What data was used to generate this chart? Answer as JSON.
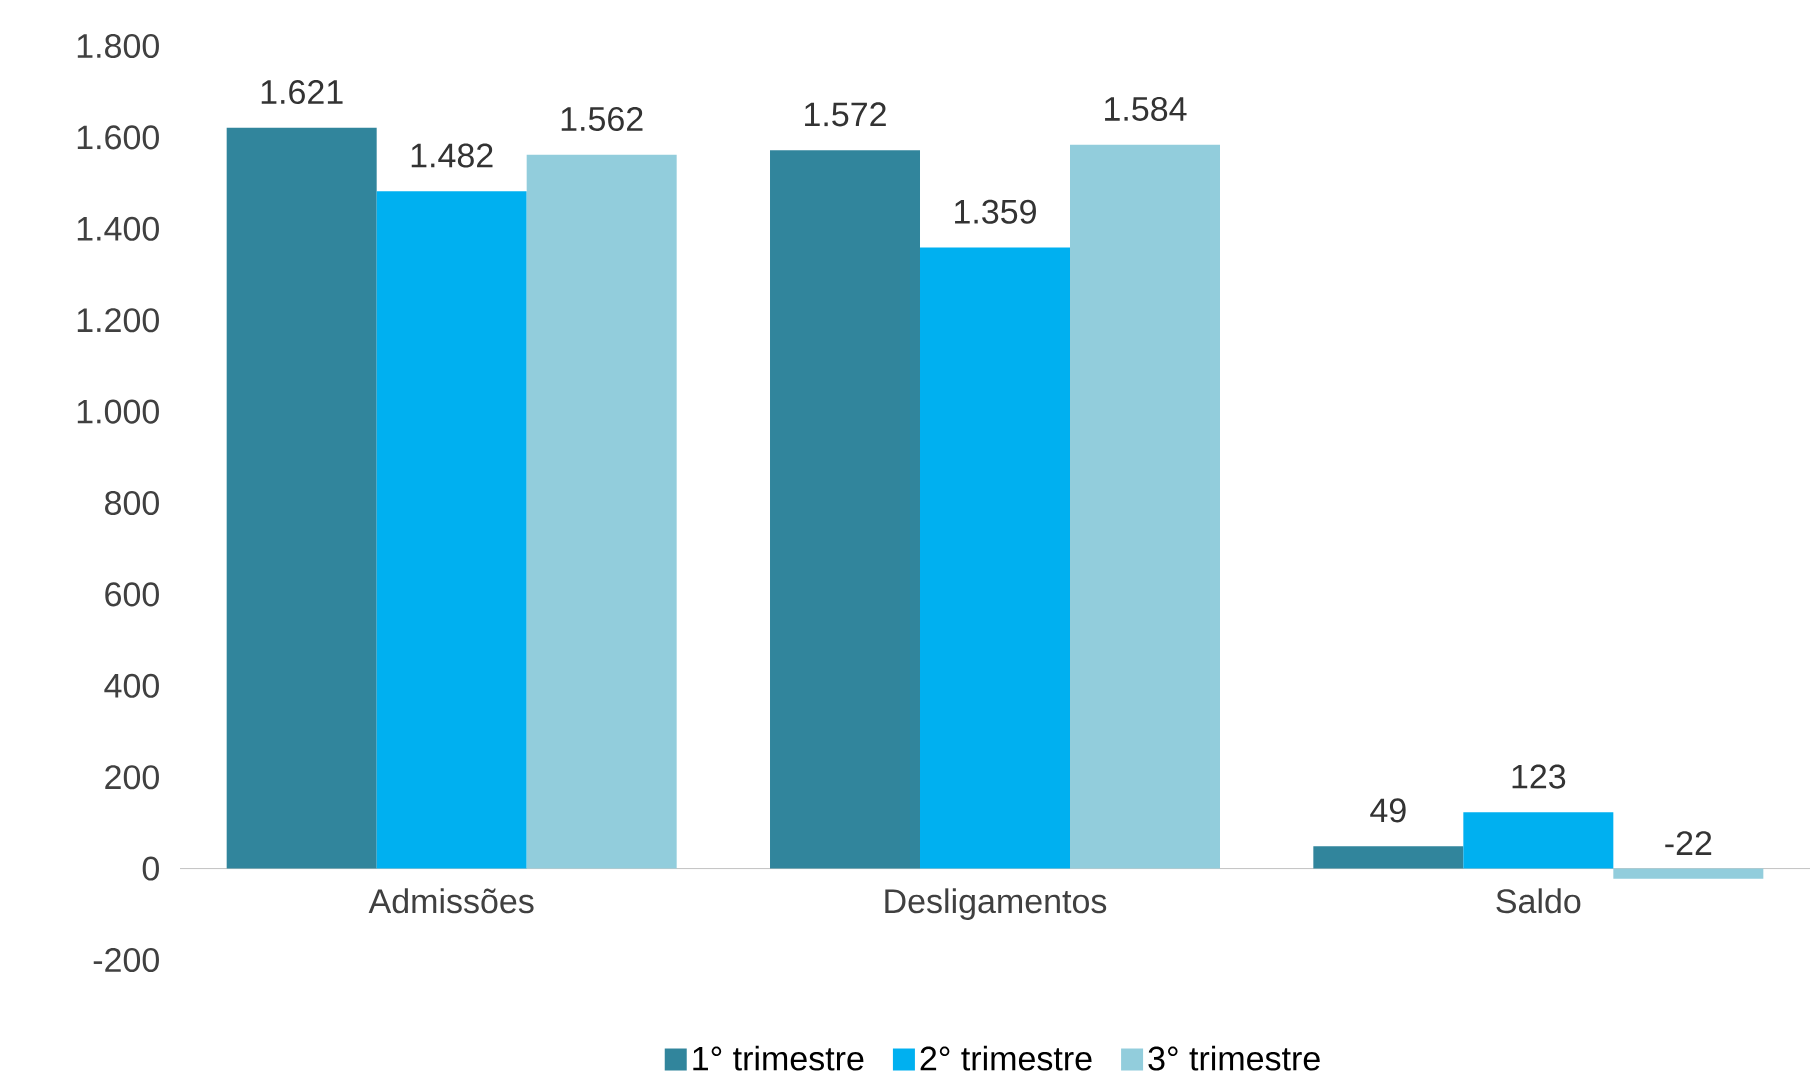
{
  "chart_data": {
    "type": "bar",
    "categories": [
      "Admissões",
      "Desligamentos",
      "Saldo"
    ],
    "series": [
      {
        "name": "1° trimestre",
        "color": "#31859c",
        "values": [
          1621,
          1572,
          49
        ],
        "value_labels": [
          "1.621",
          "1.572",
          "49"
        ]
      },
      {
        "name": "2° trimestre",
        "color": "#00b0f0",
        "values": [
          1482,
          1359,
          123
        ],
        "value_labels": [
          "1.482",
          "1.359",
          "123"
        ]
      },
      {
        "name": "3° trimestre",
        "color": "#92cddc",
        "values": [
          1562,
          1584,
          -22
        ],
        "value_labels": [
          "1.562",
          "1.584",
          "-22"
        ]
      }
    ],
    "ylim": [
      -200,
      1800
    ],
    "yticks": [
      {
        "value": -200,
        "label": "-200"
      },
      0,
      200,
      400,
      600,
      800,
      {
        "value": 1000,
        "label": "1.000"
      },
      {
        "value": 1200,
        "label": "1.200"
      },
      {
        "value": 1400,
        "label": "1.400"
      },
      {
        "value": 1600,
        "label": "1.600"
      },
      {
        "value": 1800,
        "label": "1.800"
      }
    ],
    "legend": "bottom"
  }
}
